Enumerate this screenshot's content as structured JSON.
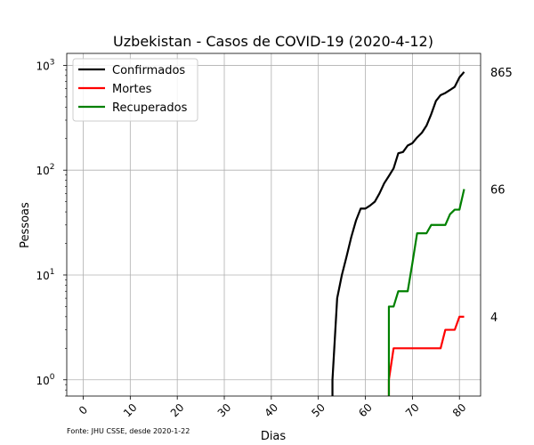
{
  "chart_data": {
    "type": "line",
    "title": "Uzbekistan - Casos de COVID-19 (2020-4-12)",
    "xlabel": "Dias",
    "ylabel": "Pessoas",
    "yscale": "log",
    "xlim": [
      -3.5,
      84.5
    ],
    "ylim": [
      0.7,
      1300
    ],
    "x_ticks": [
      0,
      10,
      20,
      30,
      40,
      50,
      60,
      70,
      80
    ],
    "y_ticks": [
      {
        "value": 1,
        "base": "10",
        "exp": "0"
      },
      {
        "value": 10,
        "base": "10",
        "exp": "1"
      },
      {
        "value": 100,
        "base": "10",
        "exp": "2"
      },
      {
        "value": 1000,
        "base": "10",
        "exp": "3"
      }
    ],
    "grid": true,
    "legend_position": "top-left",
    "source_note": "Fonte: JHU CSSE, desde 2020-1-22",
    "series": [
      {
        "name": "Confirmados",
        "color": "#000000",
        "final_label": "865",
        "points": [
          [
            53,
            0.01
          ],
          [
            53,
            1
          ],
          [
            54,
            6
          ],
          [
            55,
            10
          ],
          [
            56,
            15
          ],
          [
            57,
            23
          ],
          [
            58,
            33
          ],
          [
            59,
            43
          ],
          [
            60,
            43
          ],
          [
            61,
            46
          ],
          [
            62,
            50
          ],
          [
            63,
            60
          ],
          [
            64,
            75
          ],
          [
            65,
            88
          ],
          [
            66,
            104
          ],
          [
            67,
            145
          ],
          [
            68,
            149
          ],
          [
            69,
            172
          ],
          [
            70,
            181
          ],
          [
            71,
            205
          ],
          [
            72,
            227
          ],
          [
            73,
            266
          ],
          [
            74,
            342
          ],
          [
            75,
            457
          ],
          [
            76,
            520
          ],
          [
            77,
            545
          ],
          [
            78,
            582
          ],
          [
            79,
            624
          ],
          [
            80,
            767
          ],
          [
            81,
            865
          ]
        ]
      },
      {
        "name": "Mortes",
        "color": "#ff0000",
        "final_label": "4",
        "points": [
          [
            65,
            0.01
          ],
          [
            65,
            1
          ],
          [
            66,
            2
          ],
          [
            67,
            2
          ],
          [
            68,
            2
          ],
          [
            69,
            2
          ],
          [
            70,
            2
          ],
          [
            71,
            2
          ],
          [
            72,
            2
          ],
          [
            73,
            2
          ],
          [
            74,
            2
          ],
          [
            75,
            2
          ],
          [
            76,
            2
          ],
          [
            77,
            3
          ],
          [
            78,
            3
          ],
          [
            79,
            3
          ],
          [
            80,
            4
          ],
          [
            81,
            4
          ]
        ]
      },
      {
        "name": "Recuperados",
        "color": "#008000",
        "final_label": "66",
        "points": [
          [
            65,
            0.01
          ],
          [
            65,
            5
          ],
          [
            66,
            5
          ],
          [
            67,
            7
          ],
          [
            68,
            7
          ],
          [
            69,
            7
          ],
          [
            70,
            13
          ],
          [
            71,
            25
          ],
          [
            72,
            25
          ],
          [
            73,
            25
          ],
          [
            74,
            30
          ],
          [
            75,
            30
          ],
          [
            76,
            30
          ],
          [
            77,
            30
          ],
          [
            78,
            38
          ],
          [
            79,
            42
          ],
          [
            80,
            42
          ],
          [
            81,
            66
          ]
        ]
      }
    ]
  }
}
